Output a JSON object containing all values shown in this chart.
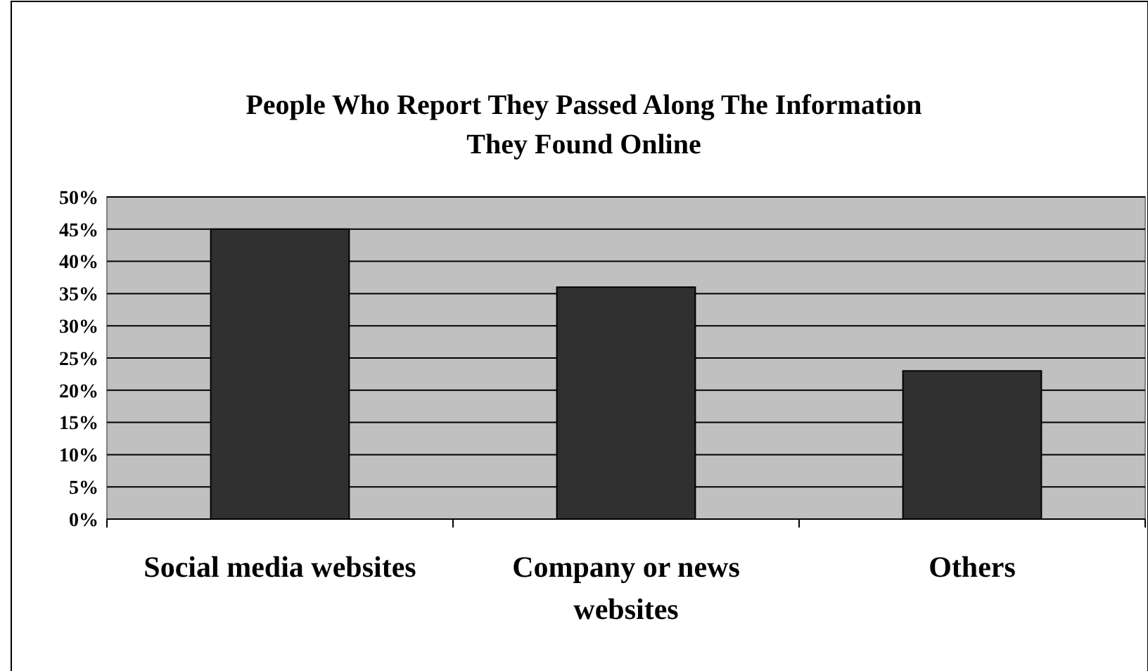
{
  "chart_data": {
    "type": "bar",
    "title": "People Who Report They Passed Along The Information They Found Online",
    "categories": [
      "Social media websites",
      "Company or news websites",
      "Others"
    ],
    "values": [
      45,
      36,
      23
    ],
    "color": "#303030",
    "ylim": [
      0,
      50
    ],
    "yticks": [
      {
        "value": 0,
        "label": "0%"
      },
      {
        "value": 5,
        "label": "5%"
      },
      {
        "value": 10,
        "label": "10%"
      },
      {
        "value": 15,
        "label": "15%"
      },
      {
        "value": 20,
        "label": "20%"
      },
      {
        "value": 25,
        "label": "25%"
      },
      {
        "value": 30,
        "label": "30%"
      },
      {
        "value": 35,
        "label": "35%"
      },
      {
        "value": 40,
        "label": "40%"
      },
      {
        "value": 45,
        "label": "45%"
      },
      {
        "value": 50,
        "label": "50%"
      }
    ],
    "grid": "y"
  }
}
